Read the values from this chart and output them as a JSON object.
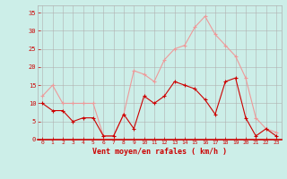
{
  "hours": [
    0,
    1,
    2,
    3,
    4,
    5,
    6,
    7,
    8,
    9,
    10,
    11,
    12,
    13,
    14,
    15,
    16,
    17,
    18,
    19,
    20,
    21,
    22,
    23
  ],
  "wind_mean": [
    10,
    8,
    8,
    5,
    6,
    6,
    1,
    1,
    7,
    3,
    12,
    10,
    12,
    16,
    15,
    14,
    11,
    7,
    16,
    17,
    6,
    1,
    3,
    1
  ],
  "wind_gust": [
    12,
    15,
    10,
    10,
    10,
    10,
    1,
    1,
    7,
    19,
    18,
    16,
    22,
    25,
    26,
    31,
    34,
    29,
    26,
    23,
    17,
    6,
    3,
    2
  ],
  "bg_color": "#cceee8",
  "grid_color": "#b0b0b0",
  "line_mean_color": "#cc0000",
  "line_gust_color": "#ee9999",
  "marker_mean_color": "#cc0000",
  "marker_gust_color": "#ee9999",
  "xlabel": "Vent moyen/en rafales ( km/h )",
  "xlabel_color": "#cc0000",
  "tick_color": "#cc0000",
  "ylim": [
    0,
    37
  ],
  "yticks": [
    0,
    5,
    10,
    15,
    20,
    25,
    30,
    35
  ]
}
